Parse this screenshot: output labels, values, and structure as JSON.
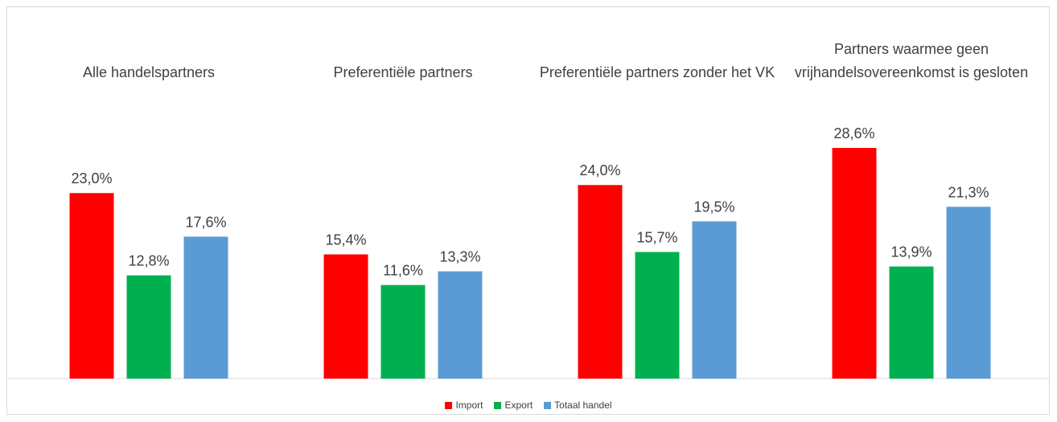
{
  "chart_data": {
    "type": "bar",
    "categories": [
      "Alle handelspartners",
      "Preferentiële partners",
      "Preferentiële partners zonder het VK",
      "Partners waarmee geen vrijhandelsovereenkomst is gesloten"
    ],
    "series": [
      {
        "name": "Import",
        "color": "#ff0000",
        "values": [
          23.0,
          15.4,
          24.0,
          28.6
        ],
        "value_labels": [
          "23,0%",
          "15,4%",
          "24,0%",
          "28,6%"
        ]
      },
      {
        "name": "Export",
        "color": "#00b050",
        "values": [
          12.8,
          11.6,
          15.7,
          13.9
        ],
        "value_labels": [
          "12,8%",
          "11,6%",
          "15,7%",
          "13,9%"
        ]
      },
      {
        "name": "Totaal handel",
        "color": "#5b9bd5",
        "values": [
          17.6,
          13.3,
          19.5,
          21.3
        ],
        "value_labels": [
          "17,6%",
          "13,3%",
          "19,5%",
          "21,3%"
        ]
      }
    ],
    "ylim": [
      0,
      30
    ],
    "legend": "bottom"
  }
}
